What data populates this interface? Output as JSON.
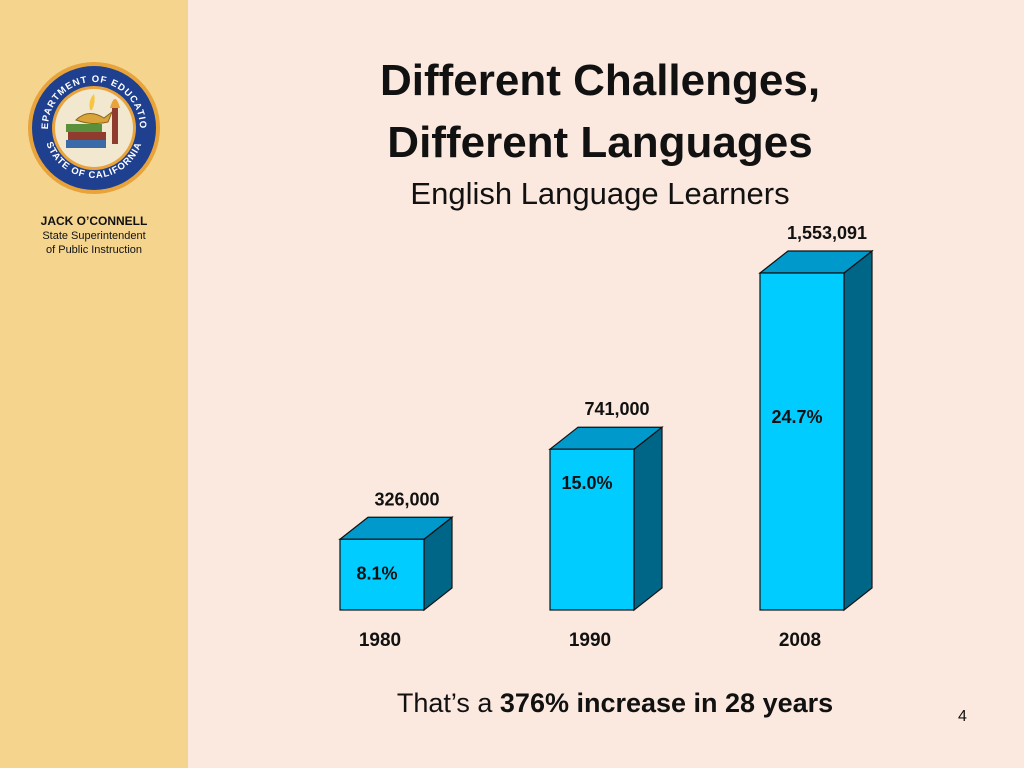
{
  "sidebar": {
    "seal_text_top": "DEPARTMENT OF EDUCATION",
    "seal_text_bottom": "STATE OF CALIFORNIA",
    "presenter_name": "JACK O’CONNELL",
    "presenter_role_line1": "State Superintendent",
    "presenter_role_line2": "of Public Instruction",
    "colors": {
      "background": "#f5d58e",
      "seal_ring": "#1f3f8f",
      "seal_border": "#e8a33a",
      "seal_inner": "#f2e7cf"
    }
  },
  "slide": {
    "title_line1": "Different Challenges,",
    "title_line2": "Different Languages",
    "subtitle": "English Language Learners",
    "footer_prefix": "That’s a ",
    "footer_bold": "376% increase in 28 years",
    "page_number": "4",
    "background": "#fbe9df"
  },
  "chart_data": {
    "type": "bar",
    "style": "3d",
    "title": "English Language Learners",
    "categories": [
      "1980",
      "1990",
      "2008"
    ],
    "values": [
      326000,
      741000,
      1553091
    ],
    "value_labels": [
      "326,000",
      "741,000",
      "1,553,091"
    ],
    "percent_labels": [
      "8.1%",
      "15.0%",
      "24.7%"
    ],
    "percent_values": [
      8.1,
      15.0,
      24.7
    ],
    "colors": {
      "front": "#00ccff",
      "top": "#0099cc",
      "side": "#006688",
      "outline": "#111111"
    },
    "grid": false,
    "legend": "none"
  }
}
